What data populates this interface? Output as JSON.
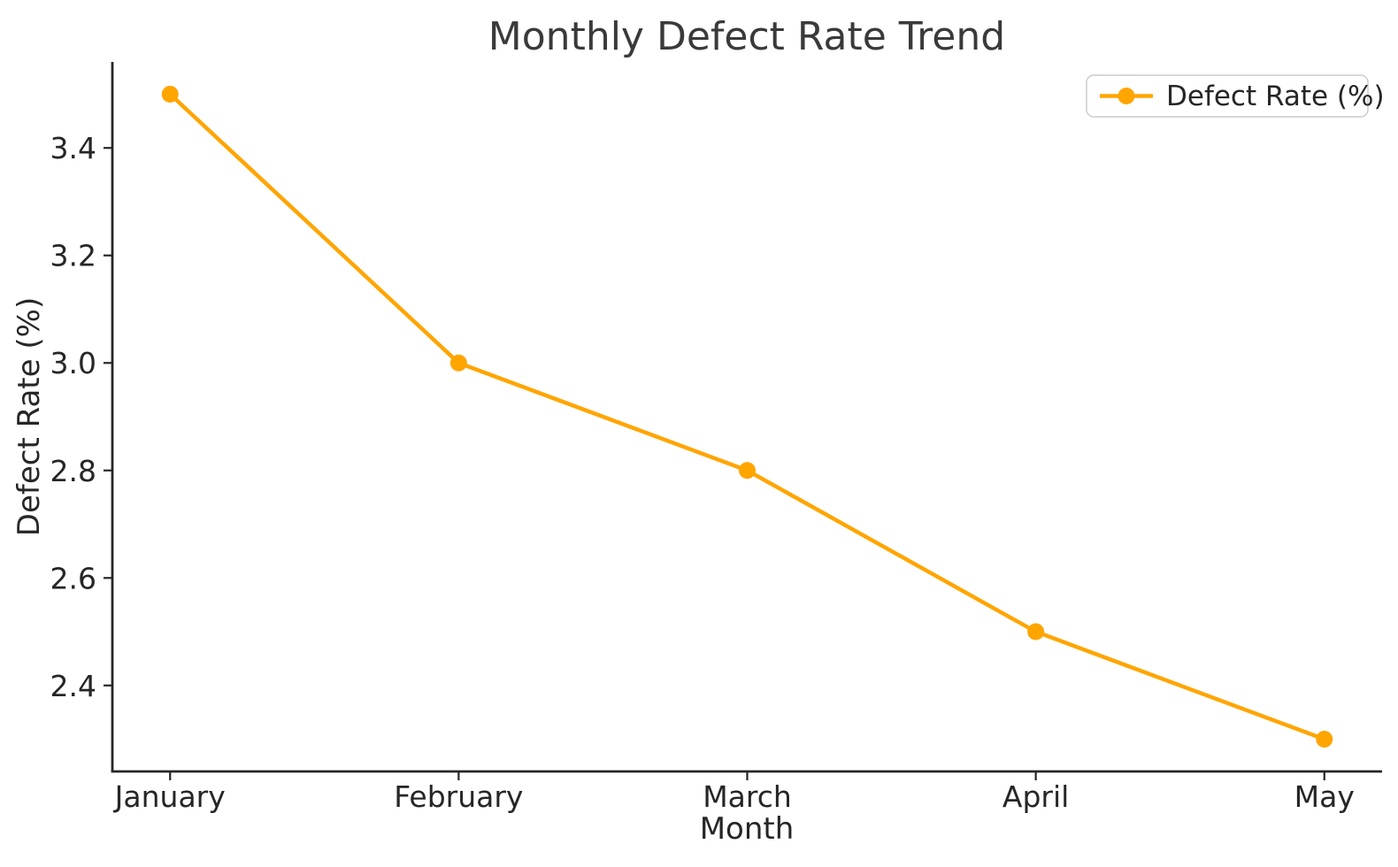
{
  "chart_data": {
    "type": "line",
    "title": "Monthly Defect Rate Trend",
    "xlabel": "Month",
    "ylabel": "Defect Rate (%)",
    "categories": [
      "January",
      "February",
      "March",
      "April",
      "May"
    ],
    "series": [
      {
        "name": "Defect Rate (%)",
        "values": [
          3.5,
          3.0,
          2.8,
          2.5,
          2.3
        ],
        "color": "#FFA500",
        "marker": "circle"
      }
    ],
    "ylim": [
      2.24,
      3.56
    ],
    "yticks": [
      2.4,
      2.6,
      2.8,
      3.0,
      3.2,
      3.4
    ],
    "ytick_format_decimals": 1,
    "grid": false,
    "legend_position": "upper right"
  },
  "legend": {
    "label": "Defect Rate (%)"
  },
  "colors": {
    "line": "#FFA500",
    "marker": "#FFA500",
    "text": "#262626",
    "title_text": "#3a3a3a",
    "axis": "#262626",
    "legend_border": "#cccccc",
    "legend_background": "#ffffff",
    "background": "#ffffff"
  }
}
